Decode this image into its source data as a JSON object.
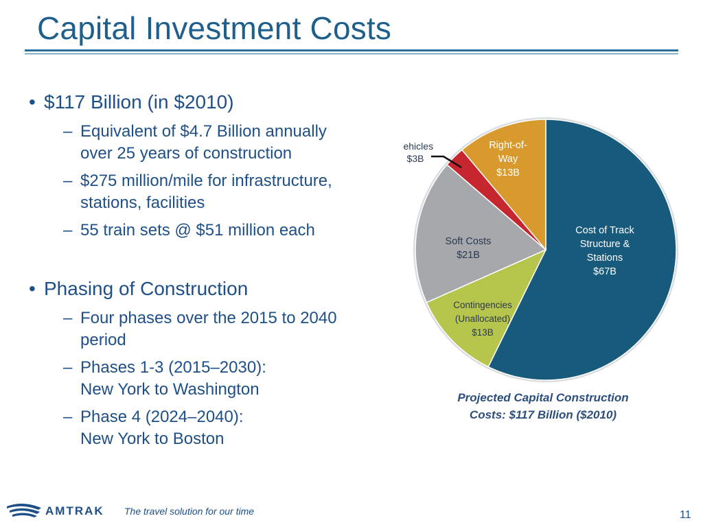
{
  "slide": {
    "title": "Capital Investment Costs",
    "tagline": "The travel solution for our time",
    "page_number": "11",
    "logo_text": "AMTRAK"
  },
  "bullets": [
    {
      "text": "$117 Billion (in $2010)",
      "sub": [
        [
          "Equivalent of $4.7 Billion annually",
          "over 25 years of construction"
        ],
        [
          "$275 million/mile for infrastructure,",
          "stations, facilities"
        ],
        [
          "55 train sets @ $51 million each"
        ]
      ]
    },
    {
      "text": "Phasing of Construction",
      "sub": [
        [
          "Four phases over the 2015 to 2040",
          "period"
        ],
        [
          "Phases 1-3 (2015–2030):",
          "New York to Washington"
        ],
        [
          "Phase 4 (2024–2040):",
          "New York to Boston"
        ]
      ]
    }
  ],
  "chart_data": {
    "type": "pie",
    "title": "Projected Capital Construction",
    "subtitle": "Costs: $117 Billion ($2010)",
    "unit": "$B",
    "slices": [
      {
        "label": [
          "Cost of Track",
          "Structure &",
          "Stations",
          "$67B"
        ],
        "value": 67,
        "color": "#175a7c",
        "text_color": "#ffffff"
      },
      {
        "label": [
          "Contingencies",
          "(Unallocated)",
          "$13B"
        ],
        "value": 13,
        "color": "#b6c54c",
        "text_color": "#2b3a52"
      },
      {
        "label": [
          "Soft Costs",
          "$21B"
        ],
        "value": 21,
        "color": "#a6a8ab",
        "text_color": "#2b3a52"
      },
      {
        "label": [
          "Vehicles",
          "$3B"
        ],
        "value": 3,
        "color": "#c6262e",
        "text_color": "#2b3a52"
      },
      {
        "label": [
          "Right-of-",
          "Way",
          "$13B"
        ],
        "value": 13,
        "color": "#d89a2d",
        "text_color": "#ffffff"
      }
    ]
  }
}
